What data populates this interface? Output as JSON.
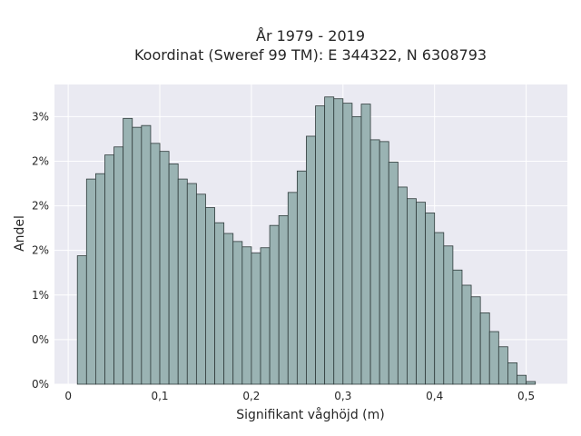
{
  "chart_data": {
    "type": "bar",
    "title": "År 1979 - 2019",
    "subtitle": "Koordinat (Sweref 99 TM): E 344322, N 6308793",
    "xlabel": "Signifikant våghöjd (m)",
    "ylabel": "Andel",
    "xlim": [
      -0.015,
      0.545
    ],
    "ylim": [
      0,
      3.36
    ],
    "x_ticks": [
      0,
      0.1,
      0.2,
      0.3,
      0.4,
      0.5
    ],
    "x_tick_labels": [
      "0",
      "0,1",
      "0,2",
      "0,3",
      "0,4",
      "0,5"
    ],
    "y_ticks": [
      0,
      0.5,
      1.0,
      1.5,
      2.0,
      2.5,
      3.0
    ],
    "y_tick_labels": [
      "0%",
      "0%",
      "1%",
      "2%",
      "2%",
      "2%",
      "3%"
    ],
    "grid": true,
    "bin_width": 0.01,
    "bin_start": 0.01,
    "values": [
      1.44,
      2.3,
      2.36,
      2.57,
      2.66,
      2.98,
      2.88,
      2.9,
      2.7,
      2.61,
      2.47,
      2.3,
      2.25,
      2.13,
      1.98,
      1.81,
      1.69,
      1.6,
      1.54,
      1.47,
      1.53,
      1.78,
      1.89,
      2.15,
      2.39,
      2.78,
      3.12,
      3.22,
      3.2,
      3.15,
      3.0,
      3.14,
      2.74,
      2.72,
      2.49,
      2.21,
      2.08,
      2.04,
      1.92,
      1.7,
      1.55,
      1.28,
      1.11,
      0.98,
      0.8,
      0.59,
      0.42,
      0.24,
      0.1,
      0.03
    ],
    "colors": {
      "bar_fill": "#9ab3b3",
      "bar_stroke": "#2f3b3b",
      "plot_bg": "#eaeaf2",
      "grid": "#ffffff"
    }
  }
}
